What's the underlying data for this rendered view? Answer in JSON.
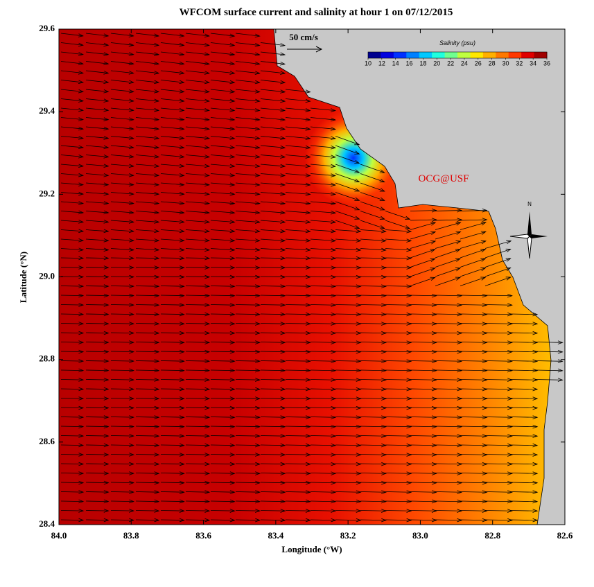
{
  "chart_data": {
    "type": "map",
    "title": "WFCOM surface current and salinity at hour 1 on 07/12/2015",
    "x_label": "Longitude (°W)",
    "y_label": "Latitude (°N)",
    "xlim": [
      84.0,
      82.6
    ],
    "xticks": [
      {
        "value": 84,
        "label": "84.0"
      },
      83.8,
      83.6,
      83.4,
      83.2,
      {
        "value": 83,
        "label": "83.0"
      },
      82.8,
      82.6
    ],
    "ylim": [
      28.4,
      29.6
    ],
    "yticks": [
      28.4,
      28.6,
      28.8,
      {
        "value": 29,
        "label": "29.0"
      },
      29.2,
      29.4,
      29.6
    ],
    "colorbar": {
      "title": "Salinity (psu)",
      "lim": [
        10,
        36
      ],
      "ticks": [
        10,
        12,
        14,
        16,
        18,
        20,
        22,
        24,
        26,
        28,
        30,
        32,
        34,
        36
      ],
      "colors": [
        "#00008f",
        "#0000df",
        "#0030ff",
        "#0080ff",
        "#00c8ff",
        "#20ffdf",
        "#70ff90",
        "#c0ff40",
        "#ffe800",
        "#ffb000",
        "#ff7800",
        "#ff3800",
        "#e00000",
        "#a00000"
      ]
    },
    "scale_label": "50 cm/s",
    "credit": "OCG@USF",
    "north_label": "N"
  }
}
